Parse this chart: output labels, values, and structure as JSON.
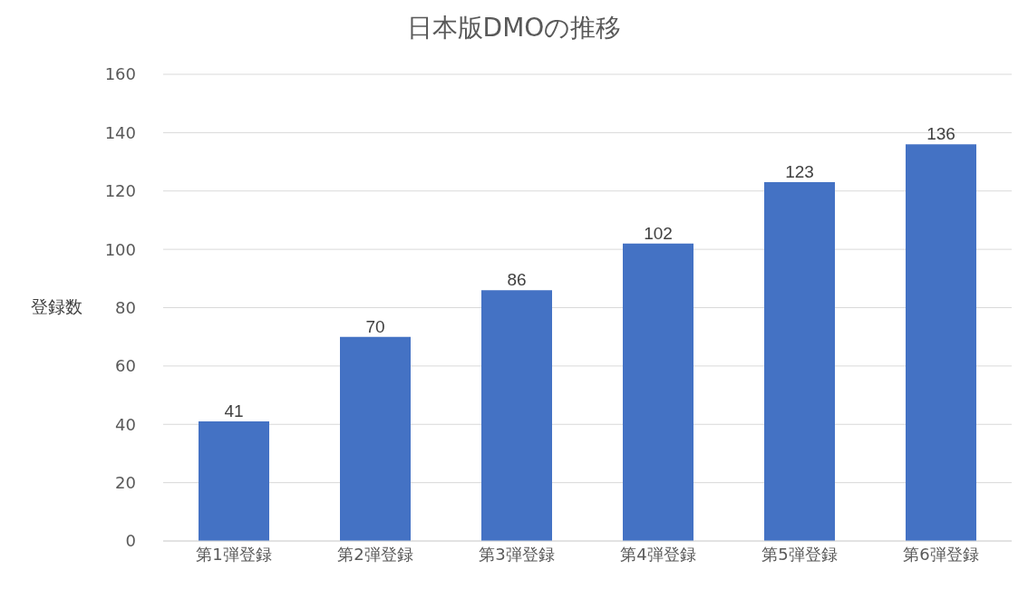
{
  "chart_data": {
    "type": "bar",
    "title": "日本版DMOの推移",
    "ylabel": "登録数",
    "categories": [
      "第1弾登録",
      "第2弾登録",
      "第3弾登録",
      "第4弾登録",
      "第5弾登録",
      "第6弾登録"
    ],
    "values": [
      41,
      70,
      86,
      102,
      123,
      136
    ],
    "color": "#4472c4",
    "ylim": [
      0,
      160
    ],
    "yticks": [
      0,
      20,
      40,
      60,
      80,
      100,
      120,
      140,
      160
    ],
    "grid": "y",
    "data_labels": true
  }
}
